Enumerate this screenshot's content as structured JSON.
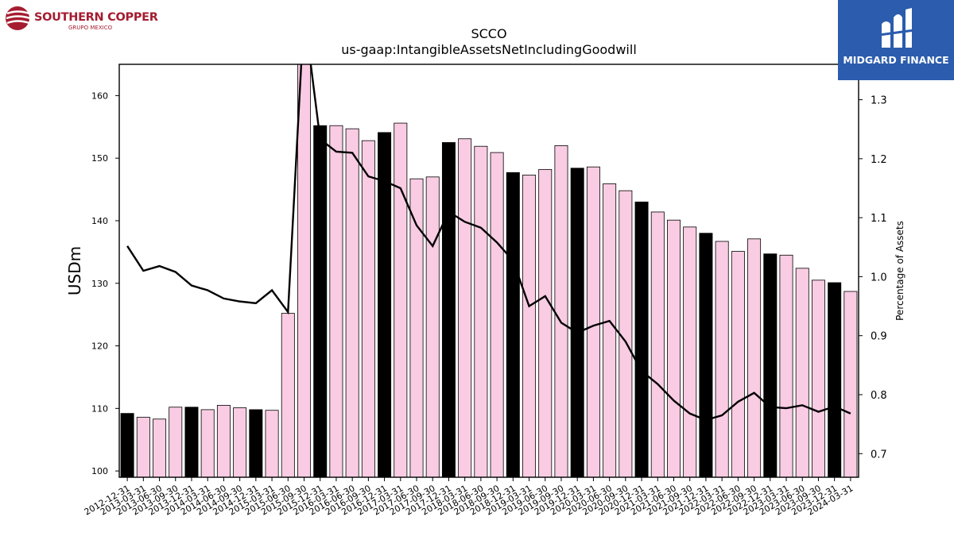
{
  "logos": {
    "left_name": "SOUTHERN COPPER",
    "left_sub": "GRUPO MEXICO",
    "right_name": "MIDGARD FINANCE",
    "left_color": "#a51c30",
    "right_bg": "#2b5cad"
  },
  "chart_data": {
    "type": "bar",
    "title": "SCCO",
    "subtitle": "us-gaap:IntangibleAssetsNetIncludingGoodwill",
    "ylabel": "USDm",
    "y2label": "Percentage of Assets",
    "ylim": [
      99,
      165
    ],
    "y2lim": [
      0.66,
      1.36
    ],
    "yticks": [
      100,
      110,
      120,
      130,
      140,
      150,
      160
    ],
    "y2ticks": [
      0.7,
      0.8,
      0.9,
      1.0,
      1.1,
      1.2,
      1.3
    ],
    "colors": {
      "year_end_bar": "#000000",
      "quarter_bar": "#f9cce3",
      "line": "#000000"
    },
    "categories": [
      "2012-12-31",
      "2013-03-31",
      "2013-06-30",
      "2013-09-30",
      "2013-12-31",
      "2014-03-31",
      "2014-06-30",
      "2014-09-30",
      "2014-12-31",
      "2015-03-31",
      "2015-06-30",
      "2015-09-30",
      "2015-12-31",
      "2016-03-31",
      "2016-06-30",
      "2016-09-30",
      "2016-12-31",
      "2017-03-31",
      "2017-06-30",
      "2017-09-30",
      "2017-12-31",
      "2018-03-31",
      "2018-06-30",
      "2018-09-30",
      "2018-12-31",
      "2019-03-31",
      "2019-06-30",
      "2019-09-30",
      "2019-12-31",
      "2020-03-31",
      "2020-06-30",
      "2020-09-30",
      "2020-12-31",
      "2021-03-31",
      "2021-06-30",
      "2021-09-30",
      "2021-12-31",
      "2022-03-31",
      "2022-06-30",
      "2022-09-30",
      "2022-12-31",
      "2023-03-31",
      "2023-06-30",
      "2023-09-30",
      "2023-12-31",
      "2024-03-31"
    ],
    "series": [
      {
        "type": "bar",
        "values": [
          109.2,
          108.6,
          108.3,
          110.2,
          110.2,
          109.8,
          110.5,
          110.1,
          109.8,
          109.7,
          125.2,
          167.0,
          155.2,
          155.2,
          154.7,
          152.8,
          154.1,
          155.6,
          146.7,
          147.0,
          152.5,
          153.1,
          151.9,
          150.9,
          147.7,
          147.3,
          148.2,
          152.0,
          148.4,
          148.6,
          145.9,
          144.8,
          143.0,
          141.4,
          140.1,
          139.0,
          138.0,
          136.7,
          135.1,
          137.1,
          134.7,
          134.5,
          132.4,
          130.5,
          130.1,
          128.7
        ]
      },
      {
        "type": "line",
        "values": [
          1.052,
          1.01,
          1.018,
          1.008,
          0.985,
          0.977,
          0.963,
          0.958,
          0.955,
          0.977,
          0.94,
          1.45,
          1.233,
          1.212,
          1.21,
          1.17,
          1.162,
          1.15,
          1.087,
          1.052,
          1.11,
          1.093,
          1.083,
          1.058,
          1.027,
          0.95,
          0.967,
          0.922,
          0.905,
          0.917,
          0.925,
          0.89,
          0.84,
          0.818,
          0.79,
          0.768,
          0.757,
          0.765,
          0.788,
          0.803,
          0.779,
          0.777,
          0.782,
          0.771,
          0.78,
          0.768
        ]
      }
    ]
  }
}
